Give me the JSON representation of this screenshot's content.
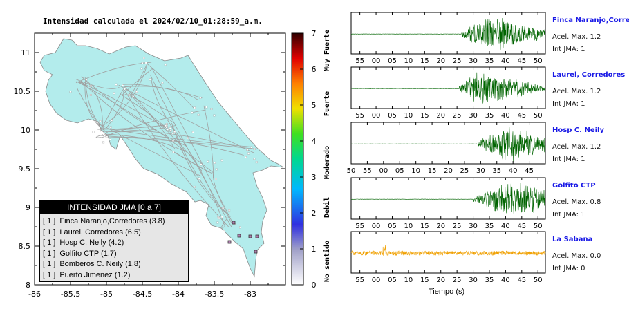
{
  "map": {
    "title": "Intensidad calculada el 2024/02/10_01:28:59_a.m.",
    "x_ticks": [
      "-86",
      "-85.5",
      "-85",
      "-84.5",
      "-84",
      "-83.5",
      "-83"
    ],
    "y_ticks": [
      "11",
      "10.5",
      "10",
      "9.5",
      "9",
      "8.5",
      "8"
    ],
    "colors": {
      "land": "#b3ecec",
      "border": "#8a8a8a",
      "roads": "#a0a0a0",
      "station": "#3a3a3a"
    }
  },
  "colorbar": {
    "ticks": [
      "7",
      "6",
      "5",
      "4",
      "3",
      "2",
      "1",
      "0"
    ],
    "labels": [
      "Muy Fuerte",
      "Fuerte",
      "Moderado",
      "Debil",
      "No sentido"
    ]
  },
  "legend": {
    "title": "INTENSIDAD JMA [0 a 7]",
    "items": [
      {
        "tag": "[ 1 ]",
        "text": "Finca Naranjo,Corredores (3.8)"
      },
      {
        "tag": "[ 1 ]",
        "text": "Laurel, Corredores (6.5)"
      },
      {
        "tag": "[ 1 ]",
        "text": "Hosp C. Neily (4.2)"
      },
      {
        "tag": "[ 1 ]",
        "text": "Golfito CTP (1.7)"
      },
      {
        "tag": "[ 1 ]",
        "text": "Bomberos C. Neily (1.8)"
      },
      {
        "tag": "[ 1 ]",
        "text": "Puerto Jimenez (1.2)"
      }
    ]
  },
  "waveforms": {
    "xlabel": "Tiempo (s)",
    "panels": [
      {
        "name": "Finca Naranjo,Corredor",
        "accel": "Acel. Max. 1.2",
        "jma": "Int JMA: 1",
        "ticks": [
          "55",
          "00",
          "05",
          "10",
          "15",
          "20",
          "25",
          "30",
          "35",
          "40",
          "45",
          "50"
        ],
        "first_tick_frac": 0.045,
        "onset": 0.57,
        "peak_frac": 0.72,
        "amp": 1.0,
        "color": "#006400"
      },
      {
        "name": "Laurel, Corredores",
        "accel": "Acel. Max. 1.2",
        "jma": "Int JMA: 1",
        "ticks": [
          "55",
          "00",
          "05",
          "10",
          "15",
          "20",
          "25",
          "30",
          "35",
          "40",
          "45",
          "50"
        ],
        "first_tick_frac": 0.045,
        "onset": 0.555,
        "peak_frac": 0.66,
        "amp": 1.0,
        "color": "#006400"
      },
      {
        "name": "Hosp C. Neily",
        "accel": "Acel. Max. 1.2",
        "jma": "Int JMA: 1",
        "ticks": [
          "50",
          "55",
          "00",
          "05",
          "10",
          "15",
          "20",
          "25",
          "30",
          "35",
          "40",
          "45"
        ],
        "first_tick_frac": 0.0,
        "onset": 0.655,
        "peak_frac": 0.8,
        "amp": 1.0,
        "color": "#006400"
      },
      {
        "name": "Golfito CTP",
        "accel": "Acel. Max. 0.8",
        "jma": "Int JMA: 1",
        "ticks": [
          "55",
          "00",
          "05",
          "10",
          "15",
          "20",
          "25",
          "30",
          "35",
          "40",
          "45",
          "50"
        ],
        "first_tick_frac": 0.045,
        "onset": 0.63,
        "peak_frac": 0.84,
        "amp": 1.0,
        "color": "#006400"
      },
      {
        "name": "La Sabana",
        "accel": "Acel. Max. 0.0",
        "jma": "Int JMA: 0",
        "ticks": [
          "55",
          "00",
          "05",
          "10",
          "15",
          "20",
          "25",
          "30",
          "35",
          "40",
          "45",
          "50"
        ],
        "first_tick_frac": 0.045,
        "onset": 0.0,
        "peak_frac": 0.17,
        "amp": 0.5,
        "color": "#f0a000"
      }
    ]
  },
  "chart_data": [
    {
      "type": "scatter",
      "title": "Intensidad calculada el 2024/02/10_01:28:59_a.m.",
      "xlabel": "",
      "ylabel": "",
      "xlim": [
        -86,
        -82.55
      ],
      "ylim": [
        8,
        11.3
      ],
      "series": [
        {
          "x": [],
          "y": []
        }
      ],
      "colorbar_range": [
        0,
        7
      ]
    },
    {
      "type": "line",
      "title": "",
      "xlabel": "Tiempo (s)",
      "ylabel": "",
      "series": [
        {
          "name": "Finca Naranjo,Corredor",
          "peak": 1.2
        },
        {
          "name": "Laurel, Corredores",
          "peak": 1.2
        },
        {
          "name": "Hosp C. Neily",
          "peak": 1.2
        },
        {
          "name": "Golfito CTP",
          "peak": 0.8
        },
        {
          "name": "La Sabana",
          "peak": 0.0
        }
      ]
    }
  ]
}
